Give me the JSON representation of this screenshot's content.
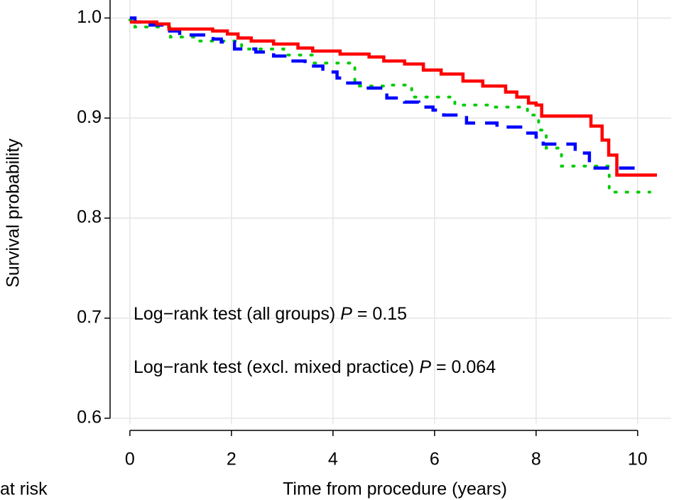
{
  "chart_data": {
    "type": "step",
    "x_label": "Time from procedure (years)",
    "y_label": "Survival probability",
    "risk_table_label": "at risk",
    "annotations": [
      {
        "text": "Log−rank test (all groups)",
        "symbol": "P",
        "result": "= 0.15"
      },
      {
        "text": "Log−rank test (excl. mixed practice)",
        "symbol": "P",
        "result": "= 0.064"
      }
    ],
    "xlim": [
      -0.39,
      10.66
    ],
    "ylim": [
      0.585,
      1.018
    ],
    "xticks": [
      0,
      2,
      4,
      6,
      8,
      10
    ],
    "yticks": [
      {
        "value": 0.6,
        "label": "0.6"
      },
      {
        "value": 0.7,
        "label": "0.7"
      },
      {
        "value": 0.8,
        "label": "0.8"
      },
      {
        "value": 0.9,
        "label": "0.9"
      },
      {
        "value": 1.0,
        "label": "1.0"
      }
    ],
    "grid": true,
    "series": [
      {
        "color": "#ff0000",
        "dash": "solid",
        "x": [
          0,
          0.53,
          0.77,
          1.63,
          1.92,
          2.13,
          2.39,
          2.83,
          3.31,
          3.6,
          4.14,
          4.71,
          5.0,
          5.41,
          5.78,
          6.13,
          6.56,
          6.95,
          7.4,
          7.62,
          7.85,
          8.0,
          8.11,
          9.08,
          9.3,
          9.43,
          9.59,
          10.38
        ],
        "values": [
          0.996,
          0.994,
          0.989,
          0.987,
          0.984,
          0.98,
          0.977,
          0.974,
          0.97,
          0.967,
          0.964,
          0.961,
          0.957,
          0.954,
          0.948,
          0.944,
          0.937,
          0.932,
          0.926,
          0.921,
          0.915,
          0.913,
          0.902,
          0.892,
          0.878,
          0.863,
          0.843,
          0.843
        ]
      },
      {
        "color": "#0000ff",
        "dash": "dashed",
        "x": [
          0,
          0.1,
          0.24,
          0.66,
          0.98,
          1.64,
          1.8,
          2.06,
          2.48,
          2.83,
          3.1,
          3.45,
          3.8,
          4.08,
          4.29,
          4.64,
          5.06,
          5.41,
          5.69,
          5.97,
          6.18,
          6.63,
          7.23,
          7.79,
          8.0,
          8.14,
          8.77,
          9.05,
          10.1
        ],
        "values": [
          1.0,
          0.996,
          0.993,
          0.987,
          0.983,
          0.979,
          0.976,
          0.969,
          0.966,
          0.962,
          0.957,
          0.952,
          0.946,
          0.94,
          0.935,
          0.93,
          0.92,
          0.916,
          0.911,
          0.908,
          0.903,
          0.895,
          0.891,
          0.885,
          0.881,
          0.874,
          0.865,
          0.85,
          0.85
        ]
      },
      {
        "color": "#00cc00",
        "dash": "dotted",
        "x": [
          0,
          0.1,
          0.8,
          1.36,
          2.2,
          3.03,
          3.6,
          4.43,
          5.0,
          5.55,
          6.4,
          7.2,
          7.83,
          8.05,
          8.2,
          8.5,
          9.44,
          10.24
        ],
        "values": [
          0.998,
          0.991,
          0.981,
          0.977,
          0.969,
          0.963,
          0.955,
          0.932,
          0.933,
          0.921,
          0.913,
          0.911,
          0.903,
          0.888,
          0.87,
          0.852,
          0.826,
          0.826
        ]
      }
    ]
  }
}
